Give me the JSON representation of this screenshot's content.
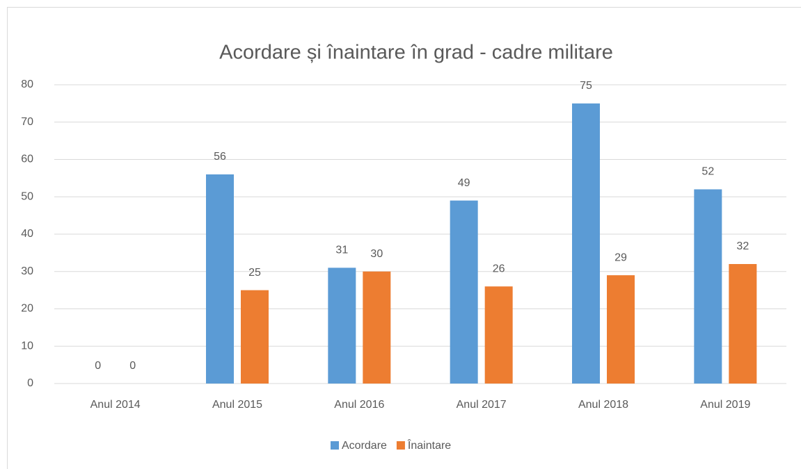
{
  "chart_data": {
    "type": "bar",
    "title": "Acordare și înaintare în grad - cadre militare",
    "categories": [
      "Anul 2014",
      "Anul 2015",
      "Anul 2016",
      "Anul 2017",
      "Anul 2018",
      "Anul 2019"
    ],
    "series": [
      {
        "name": "Acordare",
        "color": "#5b9bd5",
        "values": [
          0,
          56,
          31,
          49,
          75,
          52
        ]
      },
      {
        "name": "Înaintare",
        "color": "#ed7d31",
        "values": [
          0,
          25,
          30,
          26,
          29,
          32
        ]
      }
    ],
    "ylim": [
      0,
      80
    ],
    "yticks": [
      0,
      10,
      20,
      30,
      40,
      50,
      60,
      70,
      80
    ],
    "grid": true,
    "legend": "bottom"
  }
}
